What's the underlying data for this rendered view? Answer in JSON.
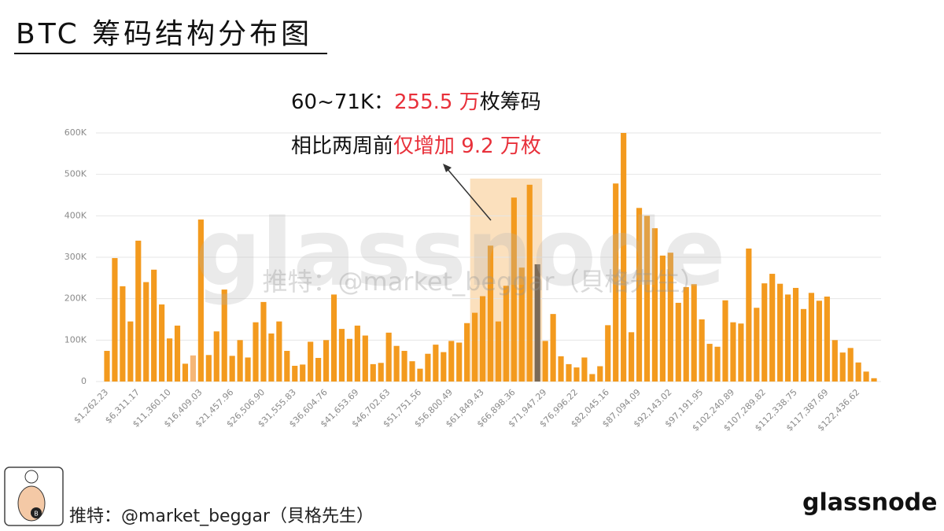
{
  "chart_data": {
    "type": "bar",
    "title": "BTC 筹码结构分布图",
    "annotation_line1": [
      {
        "text": "60~71K：",
        "color": "#111111"
      },
      {
        "text": "255.5 万",
        "color": "#e8303a"
      },
      {
        "text": "枚筹码",
        "color": "#111111"
      }
    ],
    "annotation_line2": [
      {
        "text": "相比两周前",
        "color": "#111111"
      },
      {
        "text": "仅增加 9.2 万枚",
        "color": "#e8303a"
      }
    ],
    "watermark": "glassnode",
    "watermark_credit": "推特：@market_beggar（貝格先生）",
    "footer_credit": "推特：@market_beggar（貝格先生）",
    "logo": "glassnode",
    "categories": [
      "$1,262.23",
      null,
      null,
      null,
      "$6,311.17",
      null,
      null,
      null,
      "$11,360.10",
      null,
      null,
      null,
      "$16,409.03",
      null,
      null,
      null,
      "$21,457.96",
      null,
      null,
      null,
      "$26,506.90",
      null,
      null,
      null,
      "$31,555.83",
      null,
      null,
      null,
      "$36,604.76",
      null,
      null,
      null,
      "$41,653.69",
      null,
      null,
      null,
      "$46,702.63",
      null,
      null,
      null,
      "$51,751.56",
      null,
      null,
      null,
      "$56,800.49",
      null,
      null,
      null,
      "$61,849.43",
      null,
      null,
      null,
      "$66,898.36",
      null,
      null,
      null,
      "$71,947.29",
      null,
      null,
      null,
      "$76,996.22",
      null,
      null,
      null,
      "$82,045.16",
      null,
      null,
      null,
      "$87,094.09",
      null,
      null,
      null,
      "$92,143.02",
      null,
      null,
      null,
      "$97,191.95",
      null,
      null,
      null,
      "$102,240.89",
      null,
      null,
      null,
      "$107,289.82",
      null,
      null,
      null,
      "$112,338.75",
      null,
      null,
      null,
      "$117,387.69",
      null,
      null,
      null,
      "$122,436.62",
      null,
      null
    ],
    "values": [
      74000,
      298000,
      230000,
      145000,
      340000,
      240000,
      270000,
      186000,
      104000,
      135000,
      43000,
      63000,
      391000,
      64000,
      121000,
      222000,
      62000,
      100000,
      58000,
      143000,
      192000,
      116000,
      145000,
      74000,
      38000,
      41000,
      96000,
      57000,
      100000,
      210000,
      127000,
      103000,
      135000,
      111000,
      42000,
      45000,
      118000,
      86000,
      74000,
      49000,
      31000,
      67000,
      89000,
      71000,
      98000,
      94000,
      141000,
      166000,
      206000,
      328000,
      145000,
      231000,
      444000,
      275000,
      475000,
      283000,
      98000,
      163000,
      61000,
      42000,
      34000,
      58000,
      18000,
      37000,
      136000,
      478000,
      600000,
      119000,
      419000,
      400000,
      370000,
      304000,
      311000,
      190000,
      228000,
      235000,
      150000,
      91000,
      84000,
      196000,
      143000,
      140000,
      321000,
      178000,
      237000,
      260000,
      236000,
      210000,
      226000,
      175000,
      214000,
      195000,
      205000,
      100000,
      70000,
      81000,
      46000,
      24000,
      8000
    ],
    "color": "#f39a1e",
    "bar_colors": {
      "11": "#f5b677",
      "55": "#7b6a57"
    },
    "highlight_range": [
      47,
      55
    ],
    "highlight_color": "#fbe0bd",
    "ylim": [
      0,
      600000
    ],
    "yticks": [
      0,
      {
        "value": 100000,
        "label": "100K"
      },
      {
        "value": 200000,
        "label": "200K"
      },
      {
        "value": 300000,
        "label": "300K"
      },
      {
        "value": 400000,
        "label": "400K"
      },
      {
        "value": 500000,
        "label": "500K"
      },
      {
        "value": 600000,
        "label": "600K"
      }
    ],
    "grid": true
  }
}
